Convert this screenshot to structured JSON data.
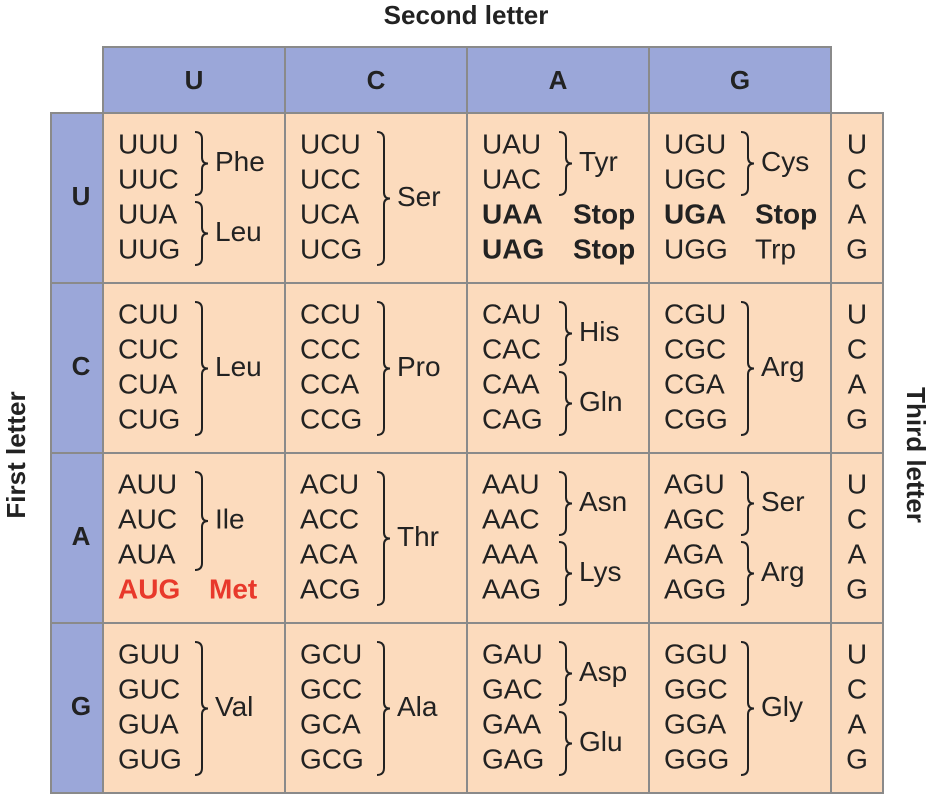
{
  "second_letter_label": "Second letter",
  "first_letter_label": "First letter",
  "third_letter_label": "Third letter",
  "columns": [
    "U",
    "C",
    "A",
    "G"
  ],
  "rows": [
    {
      "letter": "U",
      "third": [
        "U",
        "C",
        "A",
        "G"
      ],
      "cells": [
        {
          "groups": [
            {
              "codons": [
                "UUU",
                "UUC"
              ],
              "amino": "Phe"
            },
            {
              "codons": [
                "UUA",
                "UUG"
              ],
              "amino": "Leu"
            }
          ]
        },
        {
          "groups": [
            {
              "codons": [
                "UCU",
                "UCC",
                "UCA",
                "UCG"
              ],
              "amino": "Ser"
            }
          ]
        },
        {
          "groups": [
            {
              "codons": [
                "UAU",
                "UAC"
              ],
              "amino": "Tyr"
            },
            {
              "codons": [
                "UAA"
              ],
              "amino": "Stop",
              "bold": true
            },
            {
              "codons": [
                "UAG"
              ],
              "amino": "Stop",
              "bold": true
            }
          ]
        },
        {
          "groups": [
            {
              "codons": [
                "UGU",
                "UGC"
              ],
              "amino": "Cys"
            },
            {
              "codons": [
                "UGA"
              ],
              "amino": "Stop",
              "bold": true
            },
            {
              "codons": [
                "UGG"
              ],
              "amino": "Trp"
            }
          ]
        }
      ]
    },
    {
      "letter": "C",
      "third": [
        "U",
        "C",
        "A",
        "G"
      ],
      "cells": [
        {
          "groups": [
            {
              "codons": [
                "CUU",
                "CUC",
                "CUA",
                "CUG"
              ],
              "amino": "Leu"
            }
          ]
        },
        {
          "groups": [
            {
              "codons": [
                "CCU",
                "CCC",
                "CCA",
                "CCG"
              ],
              "amino": "Pro"
            }
          ]
        },
        {
          "groups": [
            {
              "codons": [
                "CAU",
                "CAC"
              ],
              "amino": "His"
            },
            {
              "codons": [
                "CAA",
                "CAG"
              ],
              "amino": "Gln"
            }
          ]
        },
        {
          "groups": [
            {
              "codons": [
                "CGU",
                "CGC",
                "CGA",
                "CGG"
              ],
              "amino": "Arg"
            }
          ]
        }
      ]
    },
    {
      "letter": "A",
      "third": [
        "U",
        "C",
        "A",
        "G"
      ],
      "cells": [
        {
          "groups": [
            {
              "codons": [
                "AUU",
                "AUC",
                "AUA"
              ],
              "amino": "Ile"
            },
            {
              "codons": [
                "AUG"
              ],
              "amino": "Met",
              "bold": true,
              "color": "#e8392b"
            }
          ]
        },
        {
          "groups": [
            {
              "codons": [
                "ACU",
                "ACC",
                "ACA",
                "ACG"
              ],
              "amino": "Thr"
            }
          ]
        },
        {
          "groups": [
            {
              "codons": [
                "AAU",
                "AAC"
              ],
              "amino": "Asn"
            },
            {
              "codons": [
                "AAA",
                "AAG"
              ],
              "amino": "Lys"
            }
          ]
        },
        {
          "groups": [
            {
              "codons": [
                "AGU",
                "AGC"
              ],
              "amino": "Ser"
            },
            {
              "codons": [
                "AGA",
                "AGG"
              ],
              "amino": "Arg"
            }
          ]
        }
      ]
    },
    {
      "letter": "G",
      "third": [
        "U",
        "C",
        "A",
        "G"
      ],
      "cells": [
        {
          "groups": [
            {
              "codons": [
                "GUU",
                "GUC",
                "GUA",
                "GUG"
              ],
              "amino": "Val"
            }
          ]
        },
        {
          "groups": [
            {
              "codons": [
                "GCU",
                "GCC",
                "GCA",
                "GCG"
              ],
              "amino": "Ala"
            }
          ]
        },
        {
          "groups": [
            {
              "codons": [
                "GAU",
                "GAC"
              ],
              "amino": "Asp"
            },
            {
              "codons": [
                "GAA",
                "GAG"
              ],
              "amino": "Glu"
            }
          ]
        },
        {
          "groups": [
            {
              "codons": [
                "GGU",
                "GGC",
                "GGA",
                "GGG"
              ],
              "amino": "Gly"
            }
          ]
        }
      ]
    }
  ]
}
